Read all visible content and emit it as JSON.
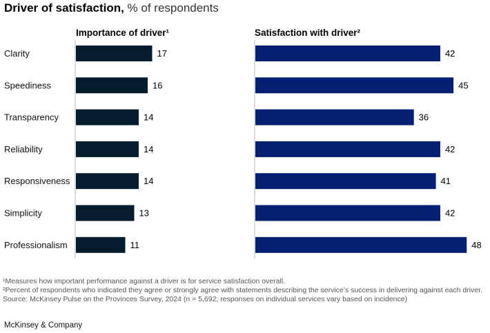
{
  "title": {
    "bold": "Driver of satisfaction,",
    "light": " % of respondents"
  },
  "chart_data": [
    {
      "type": "bar",
      "orientation": "horizontal",
      "title": "Importance of driver¹",
      "categories": [
        "Clarity",
        "Speediness",
        "Transparency",
        "Reliability",
        "Responsiveness",
        "Simplicity",
        "Professionalism"
      ],
      "values": [
        17,
        16,
        14,
        14,
        14,
        13,
        11
      ],
      "unit": "% of respondents",
      "color": "#051c2c",
      "xlim": [
        0,
        18
      ]
    },
    {
      "type": "bar",
      "orientation": "horizontal",
      "title": "Satisfaction with driver²",
      "categories": [
        "Clarity",
        "Speediness",
        "Transparency",
        "Reliability",
        "Responsiveness",
        "Simplicity",
        "Professionalism"
      ],
      "values": [
        42,
        45,
        36,
        42,
        41,
        42,
        48
      ],
      "unit": "% of respondents",
      "color": "#051f73",
      "xlim": [
        0,
        50
      ]
    }
  ],
  "footnotes": [
    "¹Measures how important performance against a driver is for service satisfaction overall.",
    "²Percent of respondents who indicated they agree or strongly agree with statements describing the service’s success in delivering against each driver.",
    " Source: McKinsey Pulse on the Provinces Survey, 2024 (n = 5,692; responses on individual services vary based on incidence)"
  ],
  "brand": "McKinsey & Company"
}
